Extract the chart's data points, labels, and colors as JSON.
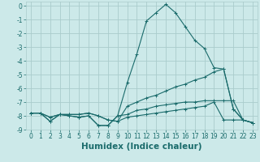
{
  "xlabel": "Humidex (Indice chaleur)",
  "background_color": "#cce9e9",
  "grid_color": "#aacccc",
  "line_color": "#1a6b6b",
  "x": [
    0,
    1,
    2,
    3,
    4,
    5,
    6,
    7,
    8,
    9,
    10,
    11,
    12,
    13,
    14,
    15,
    16,
    17,
    18,
    19,
    20,
    21,
    22,
    23
  ],
  "line1": [
    -7.8,
    -7.8,
    -8.4,
    -7.9,
    -8.0,
    -8.1,
    -8.0,
    -8.7,
    -8.7,
    -8.0,
    -7.9,
    -7.6,
    -7.5,
    -7.3,
    -7.2,
    -7.1,
    -7.0,
    -7.0,
    -6.9,
    -6.9,
    -6.9,
    -6.9,
    -8.3,
    -8.5
  ],
  "line2": [
    -7.8,
    -7.8,
    -8.4,
    -7.9,
    -8.0,
    -8.1,
    -8.0,
    -8.7,
    -8.7,
    -8.0,
    -5.6,
    -3.5,
    -1.1,
    -0.5,
    0.1,
    -0.5,
    -1.5,
    -2.5,
    -3.1,
    -4.5,
    -4.6,
    -7.5,
    -8.3,
    -8.5
  ],
  "line3": [
    -7.8,
    -7.8,
    -8.1,
    -7.9,
    -7.9,
    -7.9,
    -7.8,
    -8.0,
    -8.3,
    -8.4,
    -7.3,
    -7.0,
    -6.7,
    -6.5,
    -6.2,
    -5.9,
    -5.7,
    -5.4,
    -5.2,
    -4.8,
    -4.6,
    -7.5,
    -8.3,
    -8.5
  ],
  "line4": [
    -7.8,
    -7.8,
    -8.1,
    -7.9,
    -7.9,
    -7.9,
    -7.8,
    -8.0,
    -8.3,
    -8.4,
    -8.1,
    -8.0,
    -7.9,
    -7.8,
    -7.7,
    -7.6,
    -7.5,
    -7.4,
    -7.3,
    -7.0,
    -8.3,
    -8.3,
    -8.3,
    -8.5
  ],
  "ylim": [
    -9.0,
    0.3
  ],
  "xlim": [
    -0.5,
    23.5
  ],
  "yticks": [
    0,
    -1,
    -2,
    -3,
    -4,
    -5,
    -6,
    -7,
    -8,
    -9
  ],
  "xticks": [
    0,
    1,
    2,
    3,
    4,
    5,
    6,
    7,
    8,
    9,
    10,
    11,
    12,
    13,
    14,
    15,
    16,
    17,
    18,
    19,
    20,
    21,
    22,
    23
  ],
  "tick_fontsize": 5.5,
  "xlabel_fontsize": 7.5
}
